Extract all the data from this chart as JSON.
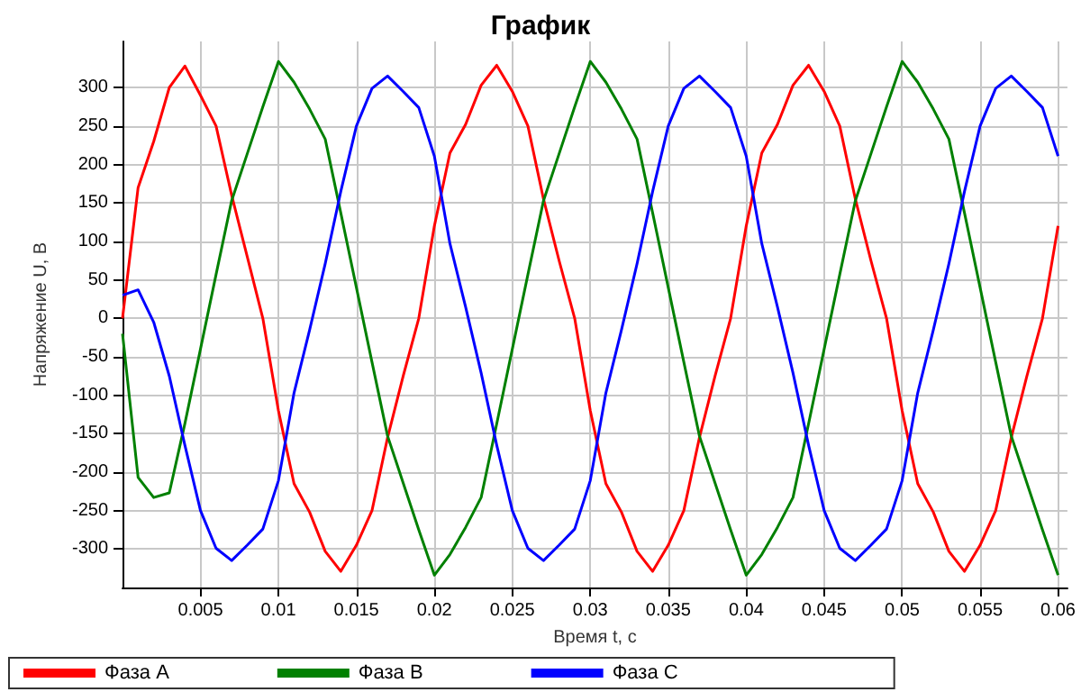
{
  "chart_data": {
    "type": "line",
    "title": "График",
    "xlabel": "Время t, с",
    "ylabel": "Напряжение U, В",
    "x": [
      0,
      0.001,
      0.002,
      0.003,
      0.004,
      0.005,
      0.006,
      0.007,
      0.008,
      0.009,
      0.01,
      0.011,
      0.012,
      0.013,
      0.014,
      0.015,
      0.016,
      0.017,
      0.018,
      0.019,
      0.02,
      0.021,
      0.022,
      0.023,
      0.024,
      0.025,
      0.026,
      0.027,
      0.028,
      0.029,
      0.03,
      0.031,
      0.032,
      0.033,
      0.034,
      0.035,
      0.036,
      0.037,
      0.038,
      0.039,
      0.04,
      0.041,
      0.042,
      0.043,
      0.044,
      0.045,
      0.046,
      0.047,
      0.048,
      0.049,
      0.05,
      0.051,
      0.052,
      0.053,
      0.054,
      0.055,
      0.056,
      0.057,
      0.058,
      0.059,
      0.06
    ],
    "series": [
      {
        "name": "Фаза А",
        "color": "#ff0000",
        "values": [
          0,
          170,
          230,
          300,
          328,
          290,
          250,
          160,
          80,
          0,
          -120,
          -215,
          -252,
          -303,
          -329,
          -295,
          -250,
          -155,
          -75,
          0,
          120,
          215,
          252,
          303,
          329,
          295,
          250,
          155,
          75,
          0,
          -120,
          -215,
          -252,
          -303,
          -329,
          -295,
          -250,
          -155,
          -75,
          0,
          120,
          215,
          252,
          303,
          329,
          295,
          250,
          155,
          75,
          0,
          -120,
          -215,
          -252,
          -303,
          -329,
          -295,
          -250,
          -155,
          -75,
          0,
          120
        ]
      },
      {
        "name": "Фаза В",
        "color": "#008000",
        "values": [
          -20,
          -207,
          -233,
          -227,
          -137,
          -40,
          57,
          153,
          214,
          275,
          334,
          307,
          272,
          233,
          137,
          40,
          -57,
          -153,
          -214,
          -275,
          -334,
          -307,
          -272,
          -233,
          -137,
          -40,
          57,
          153,
          214,
          275,
          334,
          307,
          272,
          233,
          137,
          40,
          -57,
          -153,
          -214,
          -275,
          -334,
          -307,
          -272,
          -233,
          -137,
          -40,
          57,
          153,
          214,
          275,
          334,
          307,
          272,
          233,
          137,
          40,
          -57,
          -153,
          -214,
          -275,
          -334
        ]
      },
      {
        "name": "Фаза С",
        "color": "#0000ff",
        "values": [
          30,
          37,
          -5,
          -75,
          -165,
          -250,
          -299,
          -315,
          -295,
          -274,
          -211,
          -97,
          -15,
          71,
          165,
          250,
          299,
          315,
          295,
          274,
          211,
          97,
          15,
          -71,
          -165,
          -250,
          -299,
          -315,
          -295,
          -274,
          -211,
          -97,
          -15,
          71,
          165,
          250,
          299,
          315,
          295,
          274,
          211,
          97,
          15,
          -71,
          -165,
          -250,
          -299,
          -315,
          -295,
          -274,
          -211,
          -97,
          -15,
          71,
          165,
          250,
          299,
          315,
          295,
          274,
          211
        ]
      }
    ],
    "xlim": [
      0,
      0.0606
    ],
    "xticks": [
      0.005,
      0.01,
      0.015,
      0.02,
      0.025,
      0.03,
      0.035,
      0.04,
      0.045,
      0.05,
      0.055,
      0.06
    ],
    "ylim": [
      -350,
      360
    ],
    "yticks": [
      -300,
      -250,
      -200,
      -150,
      -100,
      -50,
      0,
      50,
      100,
      150,
      200,
      250,
      300
    ],
    "grid": true,
    "legend": "bottom",
    "line_style": "solid"
  }
}
